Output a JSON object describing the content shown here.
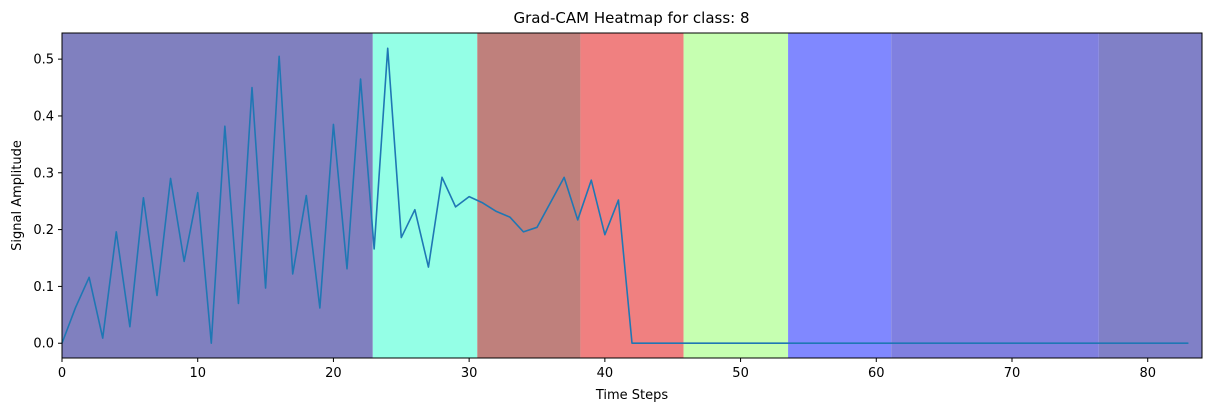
{
  "chart_data": {
    "type": "line",
    "title": "Grad-CAM Heatmap for class: 8",
    "xlabel": "Time Steps",
    "ylabel": "Signal Amplitude",
    "xlim": [
      0,
      84
    ],
    "ylim": [
      -0.026,
      0.546
    ],
    "xticks": [
      0,
      10,
      20,
      30,
      40,
      50,
      60,
      70,
      80
    ],
    "yticks": [
      0.0,
      0.1,
      0.2,
      0.3,
      0.4,
      0.5
    ],
    "grid": false,
    "legend": "none",
    "line_color": "#1f77b4",
    "heatmap_bands": [
      {
        "x0": 0,
        "x1": 22.9,
        "color": "#8080bf"
      },
      {
        "x0": 22.9,
        "x1": 30.6,
        "color": "#94ffe6"
      },
      {
        "x0": 30.6,
        "x1": 38.2,
        "color": "#bf807c"
      },
      {
        "x0": 38.2,
        "x1": 45.8,
        "color": "#f08080"
      },
      {
        "x0": 45.8,
        "x1": 53.5,
        "color": "#c6ffb1"
      },
      {
        "x0": 53.5,
        "x1": 61.1,
        "color": "#8088ff"
      },
      {
        "x0": 61.1,
        "x1": 76.4,
        "color": "#8080e0"
      },
      {
        "x0": 76.4,
        "x1": 84,
        "color": "#8080c7"
      }
    ],
    "x": [
      0,
      1,
      2,
      3,
      4,
      5,
      6,
      7,
      8,
      9,
      10,
      11,
      12,
      13,
      14,
      15,
      16,
      17,
      18,
      19,
      20,
      21,
      22,
      23,
      24,
      25,
      26,
      27,
      28,
      29,
      30,
      31,
      32,
      33,
      34,
      35,
      36,
      37,
      38,
      39,
      40,
      41,
      42,
      43,
      44,
      45,
      46,
      47,
      48,
      49,
      50,
      51,
      52,
      53,
      54,
      55,
      56,
      57,
      58,
      59,
      60,
      61,
      62,
      63,
      64,
      65,
      66,
      67,
      68,
      69,
      70,
      71,
      72,
      73,
      74,
      75,
      76,
      77,
      78,
      79,
      80,
      81,
      82,
      83
    ],
    "series": [
      {
        "values": [
          0.0,
          0.063,
          0.116,
          0.009,
          0.196,
          0.029,
          0.256,
          0.084,
          0.29,
          0.144,
          0.265,
          0.0,
          0.382,
          0.07,
          0.45,
          0.097,
          0.505,
          0.122,
          0.26,
          0.062,
          0.385,
          0.131,
          0.465,
          0.166,
          0.519,
          0.186,
          0.235,
          0.134,
          0.292,
          0.24,
          0.258,
          0.247,
          0.232,
          0.222,
          0.196,
          0.204,
          0.248,
          0.292,
          0.217,
          0.287,
          0.191,
          0.252,
          0.0,
          0.0,
          0.0,
          0.0,
          0.0,
          0.0,
          0.0,
          0.0,
          0.0,
          0.0,
          0.0,
          0.0,
          0.0,
          0.0,
          0.0,
          0.0,
          0.0,
          0.0,
          0.0,
          0.0,
          0.0,
          0.0,
          0.0,
          0.0,
          0.0,
          0.0,
          0.0,
          0.0,
          0.0,
          0.0,
          0.0,
          0.0,
          0.0,
          0.0,
          0.0,
          0.0,
          0.0,
          0.0,
          0.0,
          0.0,
          0.0,
          0.0
        ]
      }
    ]
  }
}
